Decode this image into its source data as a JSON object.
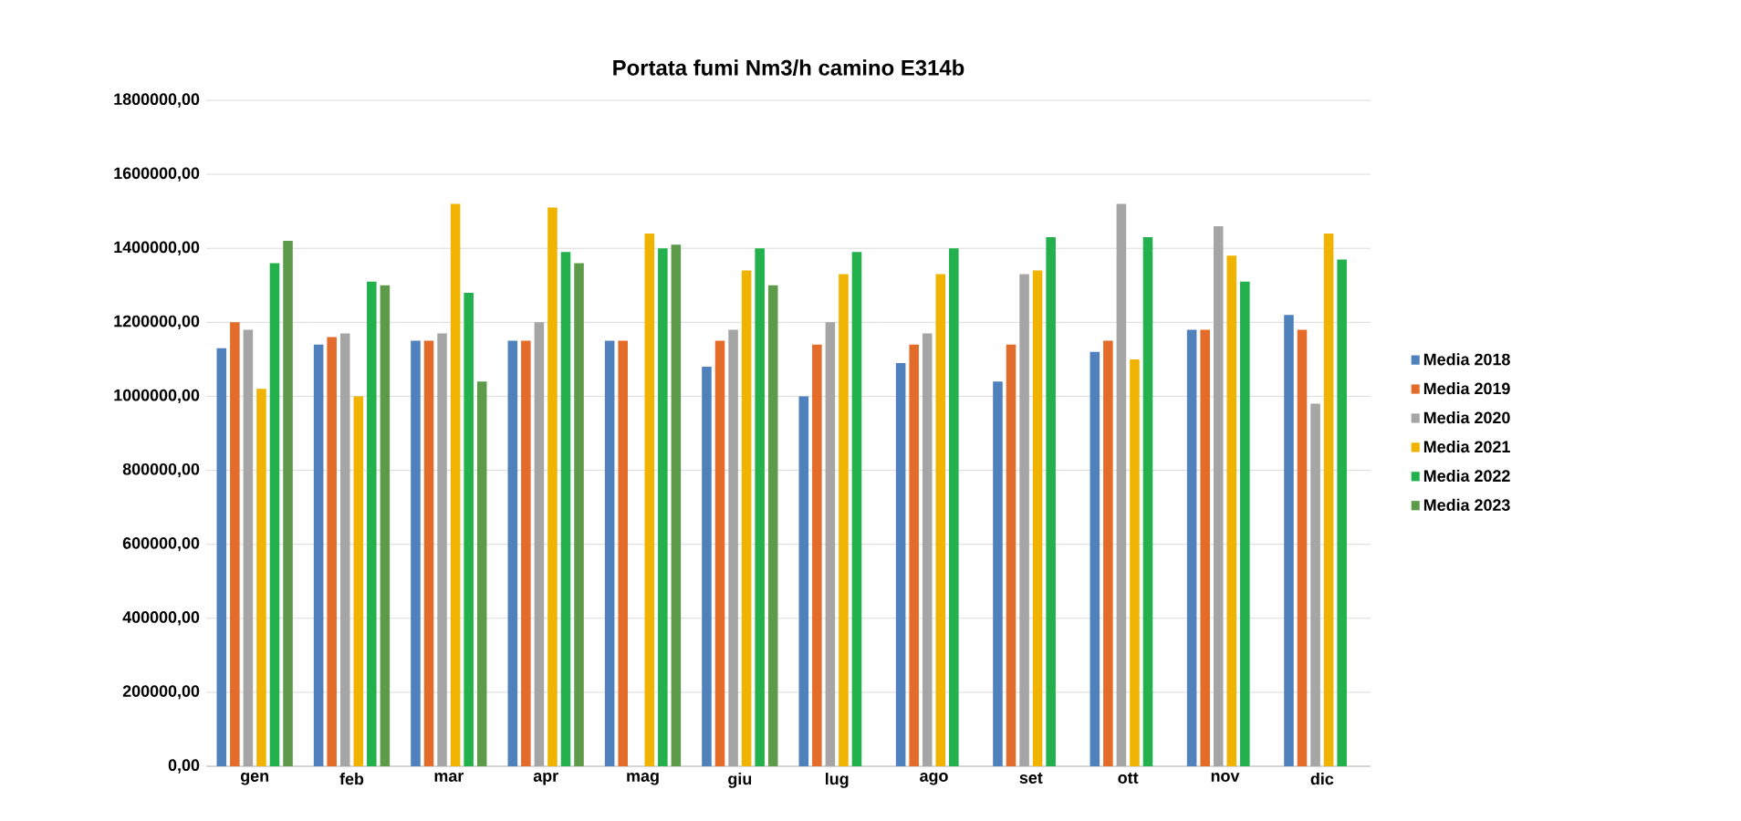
{
  "chart_data": {
    "type": "bar",
    "title": "Portata fumi Nm3/h camino E314b",
    "categories": [
      "gen",
      "feb",
      "mar",
      "apr",
      "mag",
      "giu",
      "lug",
      "ago",
      "set",
      "ott",
      "nov",
      "dic"
    ],
    "series": [
      {
        "name": "Media 2018",
        "color": "#4f81bd",
        "values": [
          1130000,
          1140000,
          1150000,
          1150000,
          1150000,
          1080000,
          1000000,
          1090000,
          1040000,
          1120000,
          1180000,
          1220000
        ]
      },
      {
        "name": "Media 2019",
        "color": "#e46c2a",
        "values": [
          1200000,
          1160000,
          1150000,
          1150000,
          1150000,
          1150000,
          1140000,
          1140000,
          1140000,
          1150000,
          1180000,
          1180000
        ]
      },
      {
        "name": "Media 2020",
        "color": "#a5a5a5",
        "values": [
          1180000,
          1170000,
          1170000,
          1200000,
          null,
          1180000,
          1200000,
          1170000,
          1330000,
          1520000,
          1460000,
          980000
        ]
      },
      {
        "name": "Media 2021",
        "color": "#f0b400",
        "values": [
          1020000,
          1000000,
          1520000,
          1510000,
          1440000,
          1340000,
          1330000,
          1330000,
          1340000,
          1100000,
          1380000,
          1440000
        ]
      },
      {
        "name": "Media 2022",
        "color": "#22b14c",
        "values": [
          1360000,
          1310000,
          1280000,
          1390000,
          1400000,
          1400000,
          1390000,
          1400000,
          1430000,
          1430000,
          1310000,
          1370000
        ]
      },
      {
        "name": "Media 2023",
        "color": "#5d9b4a",
        "values": [
          1420000,
          1300000,
          1040000,
          1360000,
          1410000,
          1300000,
          null,
          null,
          null,
          null,
          null,
          null
        ]
      }
    ],
    "ylim": [
      0,
      1800000
    ],
    "yticks": [
      {
        "value": 0,
        "label": "0,00"
      },
      {
        "value": 200000,
        "label": "200000,00"
      },
      {
        "value": 400000,
        "label": "400000,00"
      },
      {
        "value": 600000,
        "label": "600000,00"
      },
      {
        "value": 800000,
        "label": "800000,00"
      },
      {
        "value": 1000000,
        "label": "1000000,00"
      },
      {
        "value": 1200000,
        "label": "1200000,00"
      },
      {
        "value": 1400000,
        "label": "1400000,00"
      },
      {
        "value": 1600000,
        "label": "1600000,00"
      },
      {
        "value": 1800000,
        "label": "1800000,00"
      }
    ],
    "grid": "y",
    "legend": "right"
  }
}
